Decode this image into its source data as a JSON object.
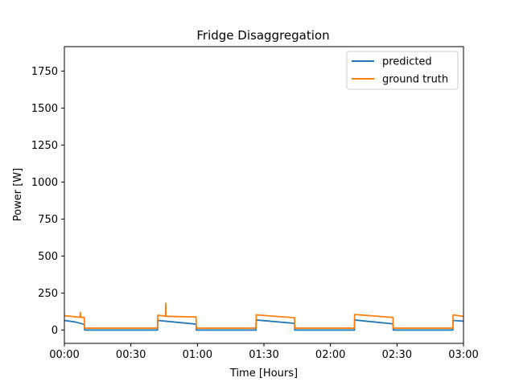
{
  "chart_data": {
    "type": "line",
    "title": "Fridge Disaggregation",
    "xlabel": "Time [Hours]",
    "ylabel": "Power [W]",
    "x_unit": "hours",
    "xlim": [
      0,
      3
    ],
    "ylim": [
      -90,
      1915
    ],
    "x_ticks": [
      {
        "value": 0,
        "label": "00:00"
      },
      {
        "value": 0.5,
        "label": "00:30"
      },
      {
        "value": 1,
        "label": "01:00"
      },
      {
        "value": 1.5,
        "label": "01:30"
      },
      {
        "value": 2,
        "label": "02:00"
      },
      {
        "value": 2.5,
        "label": "02:30"
      },
      {
        "value": 3,
        "label": "03:00"
      }
    ],
    "y_ticks": [
      {
        "value": 0,
        "label": "0"
      },
      {
        "value": 250,
        "label": "250"
      },
      {
        "value": 500,
        "label": "500"
      },
      {
        "value": 750,
        "label": "750"
      },
      {
        "value": 1000,
        "label": "1000"
      },
      {
        "value": 1250,
        "label": "1250"
      },
      {
        "value": 1500,
        "label": "1500"
      },
      {
        "value": 1750,
        "label": "1750"
      }
    ],
    "grid": false,
    "legend_position": "top-right",
    "series": [
      {
        "name": "predicted",
        "color": "#1f77b4",
        "points": [
          [
            0.0,
            65
          ],
          [
            0.08,
            55
          ],
          [
            0.15,
            38
          ],
          [
            0.152,
            0
          ],
          [
            0.7,
            0
          ],
          [
            0.702,
            65
          ],
          [
            0.99,
            40
          ],
          [
            0.992,
            0
          ],
          [
            1.44,
            0
          ],
          [
            1.442,
            68
          ],
          [
            1.73,
            45
          ],
          [
            1.732,
            0
          ],
          [
            2.18,
            0
          ],
          [
            2.182,
            68
          ],
          [
            2.47,
            42
          ],
          [
            2.472,
            0
          ],
          [
            2.92,
            0
          ],
          [
            2.922,
            65
          ],
          [
            3.0,
            60
          ]
        ]
      },
      {
        "name": "ground truth",
        "color": "#ff7f0e",
        "points": [
          [
            0.0,
            97
          ],
          [
            0.1,
            88
          ],
          [
            0.118,
            86
          ],
          [
            0.12,
            120
          ],
          [
            0.122,
            86
          ],
          [
            0.15,
            85
          ],
          [
            0.152,
            13
          ],
          [
            0.7,
            13
          ],
          [
            0.702,
            100
          ],
          [
            0.75,
            95
          ],
          [
            0.76,
            93
          ],
          [
            0.762,
            180
          ],
          [
            0.764,
            93
          ],
          [
            0.99,
            88
          ],
          [
            0.992,
            13
          ],
          [
            1.44,
            13
          ],
          [
            1.442,
            102
          ],
          [
            1.73,
            83
          ],
          [
            1.732,
            13
          ],
          [
            2.18,
            13
          ],
          [
            2.182,
            105
          ],
          [
            2.47,
            85
          ],
          [
            2.472,
            13
          ],
          [
            2.92,
            13
          ],
          [
            2.922,
            102
          ],
          [
            3.0,
            92
          ]
        ]
      }
    ]
  }
}
